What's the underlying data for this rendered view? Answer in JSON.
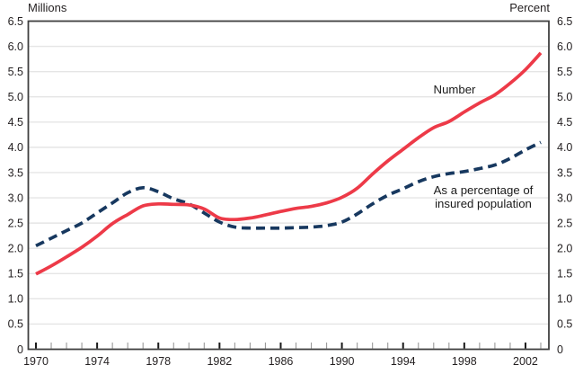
{
  "chart_data": {
    "type": "line",
    "title": "",
    "left_axis_title": "Millions",
    "right_axis_title": "Percent",
    "x": [
      1970,
      1971,
      1972,
      1973,
      1974,
      1975,
      1976,
      1977,
      1978,
      1979,
      1980,
      1981,
      1982,
      1983,
      1984,
      1985,
      1986,
      1987,
      1988,
      1989,
      1990,
      1991,
      1992,
      1993,
      1994,
      1995,
      1996,
      1997,
      1998,
      1999,
      2000,
      2001,
      2002,
      2003
    ],
    "x_major_tick_labels": [
      "1970",
      "1974",
      "1978",
      "1982",
      "1986",
      "1990",
      "1994",
      "1998",
      "2002"
    ],
    "x_major_tick_years": [
      1970,
      1974,
      1978,
      1982,
      1986,
      1990,
      1994,
      1998,
      2002
    ],
    "y_tick_values": [
      0,
      0.5,
      1.0,
      1.5,
      2.0,
      2.5,
      3.0,
      3.5,
      4.0,
      4.5,
      5.0,
      5.5,
      6.0,
      6.5
    ],
    "y_tick_labels": [
      "0",
      "0.5",
      "1.0",
      "1.5",
      "2.0",
      "2.5",
      "3.0",
      "3.5",
      "4.0",
      "4.5",
      "5.0",
      "5.5",
      "6.0",
      "6.5"
    ],
    "ylim": [
      0,
      6.5
    ],
    "grid": "horizontal-only",
    "legend_position": "inline-annotations",
    "series": [
      {
        "name": "Number",
        "label": "Number",
        "axis": "left (Millions)",
        "style": "solid",
        "color": "#ed3a48",
        "values": [
          1.49,
          1.65,
          1.83,
          2.02,
          2.24,
          2.49,
          2.67,
          2.84,
          2.88,
          2.87,
          2.86,
          2.78,
          2.6,
          2.57,
          2.6,
          2.66,
          2.73,
          2.79,
          2.83,
          2.9,
          3.01,
          3.19,
          3.47,
          3.73,
          3.96,
          4.19,
          4.39,
          4.51,
          4.7,
          4.88,
          5.04,
          5.27,
          5.54,
          5.87
        ]
      },
      {
        "name": "As a percentage of insured population",
        "label_lines": [
          "As a percentage of",
          "insured population"
        ],
        "axis": "right (Percent)",
        "style": "dashed",
        "color": "#17385f",
        "values": [
          2.05,
          2.2,
          2.35,
          2.5,
          2.7,
          2.9,
          3.1,
          3.2,
          3.12,
          2.98,
          2.88,
          2.7,
          2.52,
          2.42,
          2.4,
          2.4,
          2.4,
          2.41,
          2.42,
          2.45,
          2.52,
          2.68,
          2.88,
          3.05,
          3.18,
          3.32,
          3.42,
          3.48,
          3.52,
          3.58,
          3.65,
          3.78,
          3.95,
          4.1
        ]
      }
    ],
    "colors": {
      "grid": "#e5e5e5",
      "plot_border": "#404040",
      "major_tick": "#1a1a1a",
      "minor_tick": "#9a9a9a",
      "text": "#231f20"
    }
  }
}
